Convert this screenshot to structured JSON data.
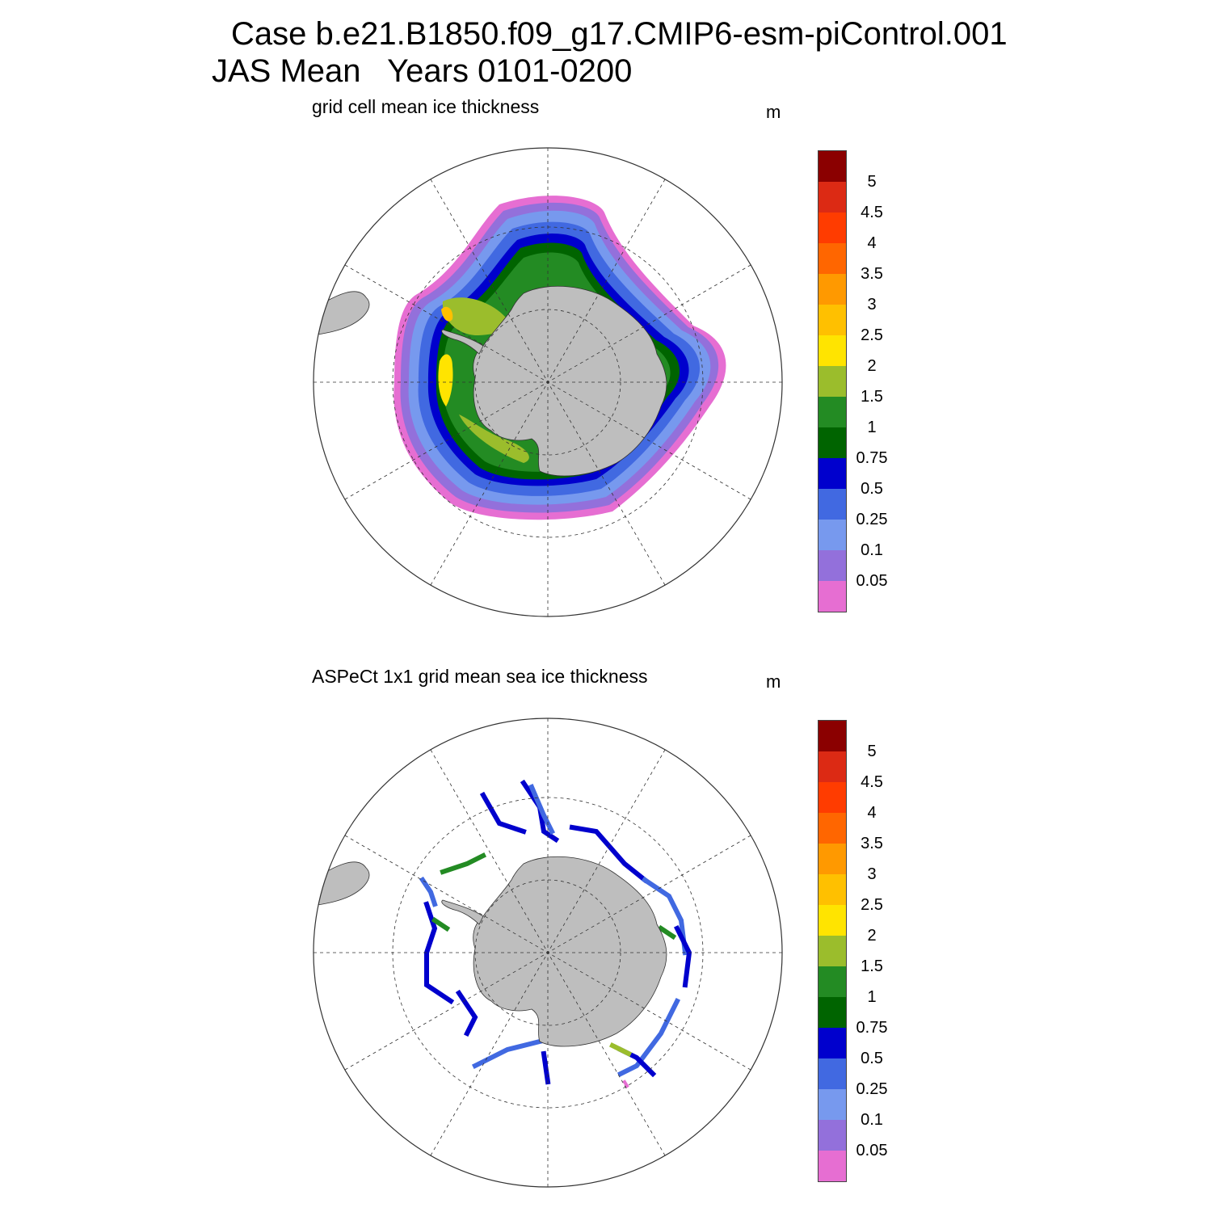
{
  "title": {
    "line1": "Case b.e21.B1850.f09_g17.CMIP6-esm-piControl.001",
    "line2": "JAS Mean   Years 0101-0200"
  },
  "panels": [
    {
      "title": "grid cell mean ice thickness",
      "unit": "m"
    },
    {
      "title": "ASPeCt 1x1 grid mean sea ice thickness",
      "unit": "m"
    }
  ],
  "colorbar": {
    "labels": [
      "5",
      "4.5",
      "4",
      "3.5",
      "3",
      "2.5",
      "2",
      "1.5",
      "1",
      "0.75",
      "0.5",
      "0.25",
      "0.1",
      "0.05"
    ],
    "colors_top_to_bottom": [
      "#8b0000",
      "#dc2a14",
      "#ff3c00",
      "#ff6600",
      "#ff9900",
      "#ffc000",
      "#ffe400",
      "#9bbd2c",
      "#238b23",
      "#006400",
      "#0000cd",
      "#4169e1",
      "#7799ee",
      "#9370db",
      "#e66ed2"
    ]
  },
  "map": {
    "projection": "south polar stereographic",
    "land_color": "#bebebe",
    "grid": "dashed meridians and parallels"
  }
}
